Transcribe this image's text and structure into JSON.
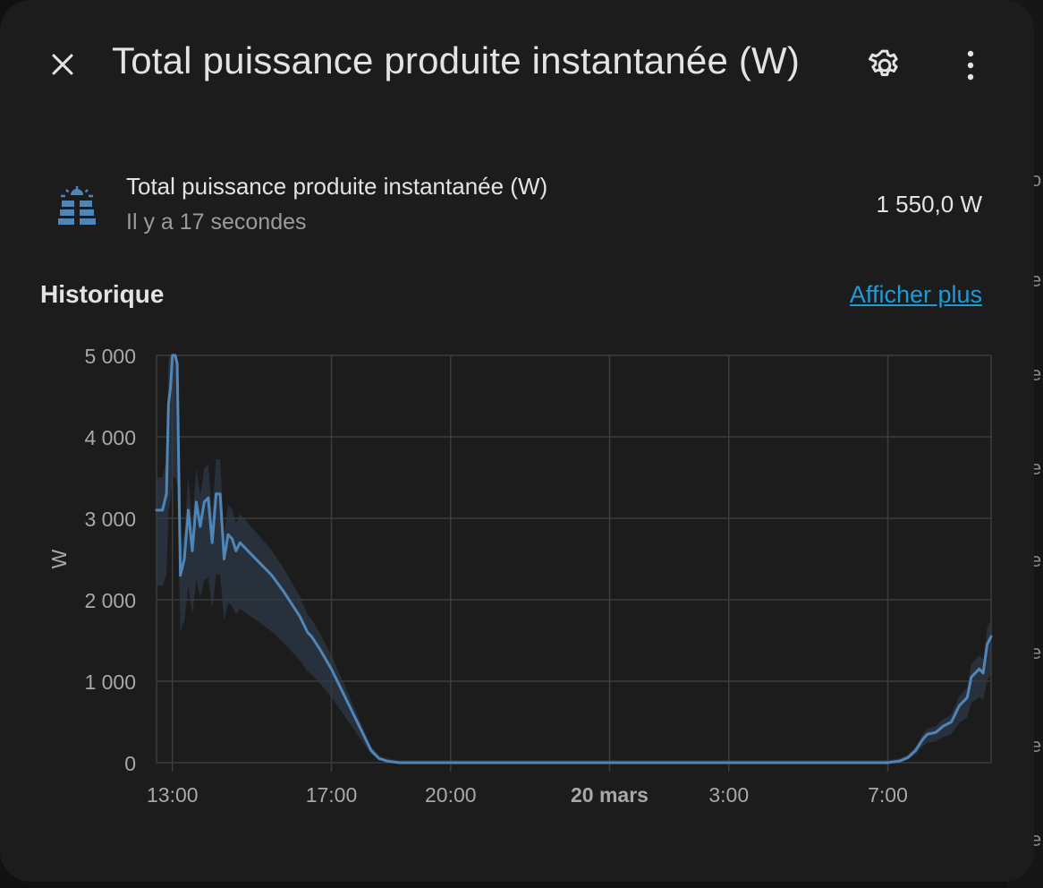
{
  "dialog": {
    "title": "Total puissance produite instantanée (W)",
    "close_icon": "close-icon",
    "settings_icon": "gear-icon",
    "more_icon": "more-vert-icon"
  },
  "entity": {
    "icon": "solar-panel-icon",
    "name": "Total puissance produite instantanée (W)",
    "last_changed": "Il y a 17 secondes",
    "state": "1 550,0 W"
  },
  "history": {
    "title": "Historique",
    "more_link": "Afficher plus"
  },
  "colors": {
    "background": "#1c1c1c",
    "line": "#4f86b7",
    "band": "#2d3a48",
    "grid": "#3d3d3d",
    "link": "#1e9ad6"
  },
  "chart_data": {
    "type": "line",
    "ylabel": "W",
    "ylim": [
      0,
      5000
    ],
    "yticks": [
      0,
      1000,
      2000,
      3000,
      4000,
      5000
    ],
    "ytick_labels": [
      "0",
      "1 000",
      "2 000",
      "3 000",
      "4 000",
      "5 000"
    ],
    "xlim_hours": [
      12.6,
      33.6
    ],
    "xticks": [
      {
        "hour": 13,
        "label": "13:00",
        "bold": false
      },
      {
        "hour": 17,
        "label": "17:00",
        "bold": false
      },
      {
        "hour": 20,
        "label": "20:00",
        "bold": false
      },
      {
        "hour": 24,
        "label": "20 mars",
        "bold": true
      },
      {
        "hour": 27,
        "label": "3:00",
        "bold": false
      },
      {
        "hour": 31,
        "label": "7:00",
        "bold": false
      }
    ],
    "grid": true,
    "series": [
      {
        "x": [
          12.6,
          12.75,
          12.85,
          12.9,
          12.95,
          13.0,
          13.07,
          13.12,
          13.2,
          13.3,
          13.4,
          13.5,
          13.6,
          13.7,
          13.8,
          13.9,
          14.0,
          14.1,
          14.2,
          14.3,
          14.4,
          14.5,
          14.6,
          14.7,
          14.8,
          14.9,
          15.0,
          15.2,
          15.5,
          15.8,
          16.0,
          16.2,
          16.4,
          16.5,
          16.7,
          17.0,
          17.2,
          17.5,
          17.8,
          18.0,
          18.2,
          18.4,
          18.7,
          19.0,
          20.0,
          24.0,
          27.0,
          30.0,
          31.0,
          31.3,
          31.5,
          31.7,
          31.9,
          32.0,
          32.2,
          32.4,
          32.6,
          32.8,
          33.0,
          33.1,
          33.2,
          33.3,
          33.4,
          33.5,
          33.6
        ],
        "y": [
          3100,
          3100,
          3300,
          4400,
          4600,
          5000,
          5000,
          4900,
          2300,
          2500,
          3100,
          2600,
          3200,
          2900,
          3200,
          3250,
          2700,
          3300,
          3300,
          2500,
          2800,
          2750,
          2600,
          2700,
          2650,
          2600,
          2550,
          2450,
          2300,
          2100,
          1950,
          1800,
          1600,
          1550,
          1400,
          1150,
          950,
          650,
          350,
          150,
          50,
          20,
          0,
          0,
          0,
          0,
          0,
          0,
          0,
          20,
          60,
          150,
          300,
          350,
          370,
          450,
          500,
          700,
          800,
          1050,
          1100,
          1150,
          1100,
          1450,
          1550
        ]
      }
    ]
  }
}
